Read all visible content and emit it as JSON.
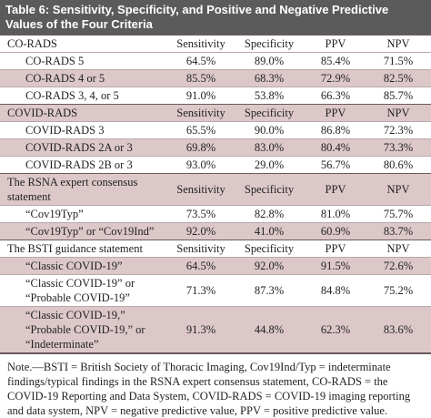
{
  "title": "Table 6: Sensitivity, Specificity, and Positive and Negative Predictive Values of the Four Criteria",
  "table": {
    "sections": [
      {
        "header": [
          "CO-RADS",
          "Sensitivity",
          "Specificity",
          "PPV",
          "NPV"
        ],
        "rows": [
          [
            "CO-RADS 5",
            "64.5%",
            "89.0%",
            "85.4%",
            "71.5%"
          ],
          [
            "CO-RADS 4 or 5",
            "85.5%",
            "68.3%",
            "72.9%",
            "82.5%"
          ],
          [
            "CO-RADS 3, 4, or 5",
            "91.0%",
            "53.8%",
            "66.3%",
            "85.7%"
          ]
        ]
      },
      {
        "header": [
          "COVID-RADS",
          "Sensitivity",
          "Specificity",
          "PPV",
          "NPV"
        ],
        "rows": [
          [
            "COVID-RADS 3",
            "65.5%",
            "90.0%",
            "86.8%",
            "72.3%"
          ],
          [
            "COVID-RADS 2A or 3",
            "69.8%",
            "83.0%",
            "80.4%",
            "73.3%"
          ],
          [
            "COVID-RADS 2B or 3",
            "93.0%",
            "29.0%",
            "56.7%",
            "80.6%"
          ]
        ]
      },
      {
        "header": [
          "The RSNA expert consensus statement",
          "Sensitivity",
          "Specificity",
          "PPV",
          "NPV"
        ],
        "rows": [
          [
            "“Cov19Typ”",
            "73.5%",
            "82.8%",
            "81.0%",
            "75.7%"
          ],
          [
            "“Cov19Typ” or “Cov19Ind”",
            "92.0%",
            "41.0%",
            "60.9%",
            "83.7%"
          ]
        ]
      },
      {
        "header": [
          "The BSTI guidance statement",
          "Sensitivity",
          "Specificity",
          "PPV",
          "NPV"
        ],
        "rows": [
          [
            "“Classic COVID-19”",
            "64.5%",
            "92.0%",
            "91.5%",
            "72.6%"
          ],
          [
            "“Classic COVID-19” or “Probable COVID-19”",
            "71.3%",
            "87.3%",
            "84.8%",
            "75.2%"
          ],
          [
            "“Classic COVID-19,” “Probable COVID-19,” or “Indeterminate”",
            "91.3%",
            "44.8%",
            "62.3%",
            "83.6%"
          ]
        ]
      }
    ]
  },
  "note": "Note.—BSTI = British Society of Thoracic Imaging, Cov19Ind/Typ = indeterminate findings/typical findings in the RSNA expert consensus statement, CO-RADS = the COVID-19 Reporting and Data System, COVID-RADS = COVID-19 imaging reporting and data system, NPV = negative predictive value, PPV = positive predictive value."
}
